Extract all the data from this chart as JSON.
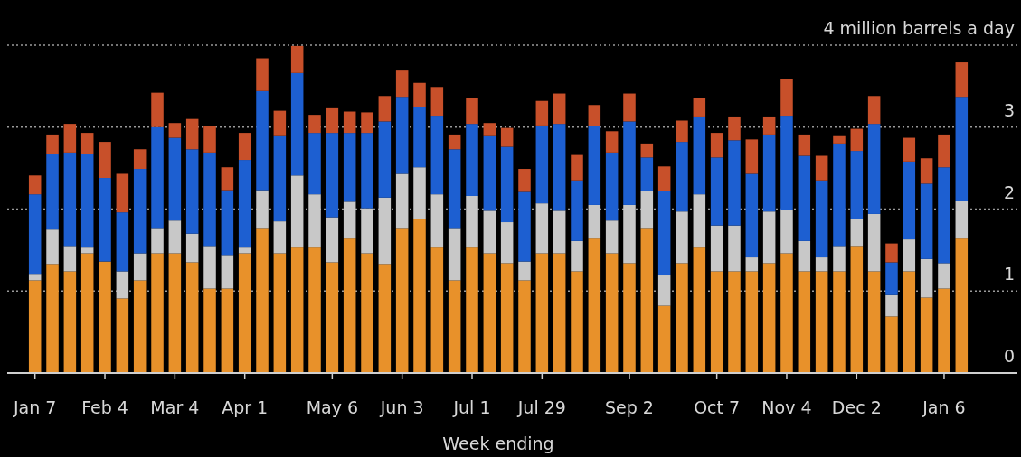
{
  "chart_data": {
    "type": "bar",
    "stacked": true,
    "xlabel": "Week ending",
    "grid": "y",
    "ylim": [
      0,
      4
    ],
    "yticks": [
      0,
      1,
      2,
      3,
      {
        "value": 4,
        "label": "4 million barrels a day"
      }
    ],
    "categories": [
      "Jan 7",
      null,
      null,
      null,
      "Feb 4",
      null,
      null,
      null,
      "Mar 4",
      null,
      null,
      null,
      "Apr 1",
      null,
      null,
      null,
      null,
      "May 6",
      null,
      null,
      null,
      "Jun 3",
      null,
      null,
      null,
      "Jul 1",
      null,
      null,
      null,
      "Jul 29",
      null,
      null,
      null,
      null,
      "Sep 2",
      null,
      null,
      null,
      null,
      "Oct 7",
      null,
      null,
      null,
      "Nov 4",
      null,
      null,
      null,
      "Dec 2",
      null,
      null,
      null,
      null,
      "Jan 6",
      null
    ],
    "series": [
      {
        "color": "#e8912a",
        "values": [
          1.13,
          1.33,
          1.24,
          1.46,
          1.36,
          0.91,
          1.13,
          1.46,
          1.46,
          1.35,
          1.03,
          1.03,
          1.46,
          1.77,
          1.46,
          1.53,
          1.53,
          1.35,
          1.64,
          1.46,
          1.33,
          1.77,
          1.88,
          1.53,
          1.13,
          1.53,
          1.46,
          1.34,
          1.13,
          1.46,
          1.46,
          1.24,
          1.64,
          1.46,
          1.34,
          1.77,
          0.82,
          1.34,
          1.53,
          1.24,
          1.24,
          1.24,
          1.34,
          1.46,
          1.24,
          1.24,
          1.24,
          1.55,
          1.24,
          0.69,
          1.24,
          0.92,
          1.03,
          1.64
        ]
      },
      {
        "color": "#c8c8c8",
        "values": [
          0.08,
          0.42,
          0.31,
          0.07,
          0,
          0.33,
          0.33,
          0.31,
          0.4,
          0.35,
          0.52,
          0.41,
          0.07,
          0.46,
          0.39,
          0.88,
          0.65,
          0.55,
          0.45,
          0.55,
          0.81,
          0.66,
          0.63,
          0.65,
          0.64,
          0.63,
          0.52,
          0.5,
          0.23,
          0.61,
          0.52,
          0.37,
          0.41,
          0.4,
          0.71,
          0.45,
          0.37,
          0.63,
          0.65,
          0.56,
          0.56,
          0.17,
          0.63,
          0.53,
          0.37,
          0.17,
          0.31,
          0.33,
          0.7,
          0.26,
          0.39,
          0.47,
          0.31,
          0.46
        ]
      },
      {
        "color": "#1d5fd1",
        "values": [
          0.97,
          0.92,
          1.14,
          1.14,
          1.02,
          0.72,
          1.03,
          1.23,
          1.01,
          1.03,
          1.14,
          0.79,
          1.07,
          1.21,
          1.04,
          1.25,
          0.75,
          1.03,
          0.84,
          0.92,
          0.93,
          0.94,
          0.73,
          0.96,
          0.96,
          0.88,
          0.91,
          0.92,
          0.85,
          0.95,
          1.06,
          0.74,
          0.96,
          0.83,
          1.02,
          0.41,
          1.03,
          0.85,
          0.95,
          0.83,
          1.04,
          1.02,
          0.94,
          1.15,
          1.04,
          0.94,
          1.25,
          0.83,
          1.1,
          0.4,
          0.95,
          0.92,
          1.17,
          1.27
        ]
      },
      {
        "color": "#c8502a",
        "values": [
          0.23,
          0.24,
          0.35,
          0.26,
          0.44,
          0.47,
          0.24,
          0.42,
          0.18,
          0.37,
          0.32,
          0.28,
          0.33,
          0.4,
          0.31,
          0.33,
          0.22,
          0.3,
          0.26,
          0.25,
          0.31,
          0.32,
          0.3,
          0.35,
          0.18,
          0.31,
          0.16,
          0.23,
          0.28,
          0.3,
          0.37,
          0.31,
          0.26,
          0.26,
          0.34,
          0.17,
          0.3,
          0.26,
          0.22,
          0.3,
          0.29,
          0.42,
          0.22,
          0.45,
          0.26,
          0.3,
          0.09,
          0.27,
          0.34,
          0.23,
          0.29,
          0.31,
          0.4,
          0.42
        ]
      }
    ]
  }
}
